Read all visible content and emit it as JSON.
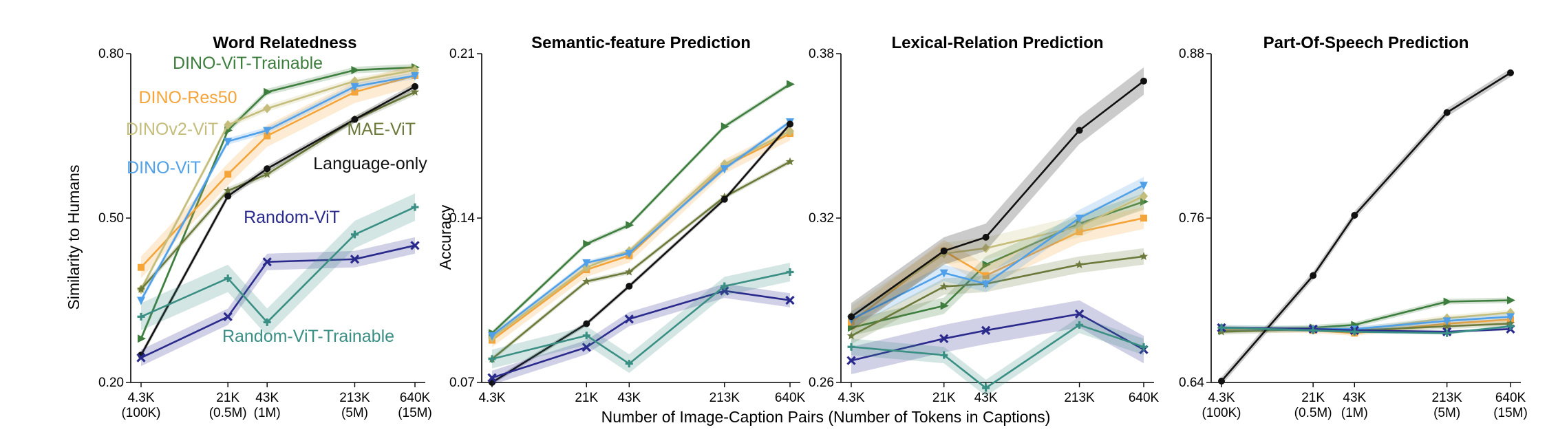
{
  "figure": {
    "xlabel": "Number of Image-Caption Pairs (Number of Tokens in Captions)",
    "ylabel_left": "Similarity to Humans",
    "ylabel_right": "Accuracy",
    "x_ticks": [
      {
        "value": 4.3,
        "label": "4.3K",
        "sub": "(100K)"
      },
      {
        "value": 21,
        "label": "21K",
        "sub": "(0.5M)"
      },
      {
        "value": 43,
        "label": "43K",
        "sub": "(1M)"
      },
      {
        "value": 213,
        "label": "213K",
        "sub": "(5M)"
      },
      {
        "value": 640,
        "label": "640K",
        "sub": "(15M)"
      }
    ]
  },
  "series_styles": [
    {
      "name": "DINO-ViT-Trainable",
      "color": "#3d7d3d",
      "marker": "tri-right"
    },
    {
      "name": "DINO-Res50",
      "color": "#f5a43a",
      "marker": "square"
    },
    {
      "name": "DINOv2-ViT",
      "color": "#c4bd7c",
      "marker": "diamond"
    },
    {
      "name": "MAE-ViT",
      "color": "#6b7a3a",
      "marker": "star"
    },
    {
      "name": "DINO-ViT",
      "color": "#4fa0e8",
      "marker": "tri-down"
    },
    {
      "name": "Language-only",
      "color": "#111111",
      "marker": "circle"
    },
    {
      "name": "Random-ViT",
      "color": "#2a2a8c",
      "marker": "x"
    },
    {
      "name": "Random-ViT-Trainable",
      "color": "#3a8f84",
      "marker": "plus"
    }
  ],
  "chart_data": [
    {
      "type": "line",
      "title": "Word Relatedness",
      "ylabel": "Similarity to Humans",
      "x": [
        4.3,
        21,
        43,
        213,
        640
      ],
      "xscale": "log",
      "ylim": [
        0.2,
        0.8
      ],
      "yticks": [
        "0.80",
        "0.50",
        "0.20"
      ],
      "ytick_values": [
        0.8,
        0.5,
        0.2
      ],
      "legend_labels": [
        {
          "text": "DINO-ViT-Trainable",
          "series": 0
        },
        {
          "text": "DINO-Res50",
          "series": 1
        },
        {
          "text": "DINOv2-ViT",
          "series": 2
        },
        {
          "text": "MAE-ViT",
          "series": 3
        },
        {
          "text": "DINO-ViT",
          "series": 4
        },
        {
          "text": "Language-only",
          "series": 5
        },
        {
          "text": "Random-ViT",
          "series": 6
        },
        {
          "text": "Random-ViT-Trainable",
          "series": 7
        }
      ],
      "series": [
        {
          "name": "DINO-ViT-Trainable",
          "values": [
            0.28,
            0.66,
            0.73,
            0.77,
            0.775
          ],
          "band": 0.006
        },
        {
          "name": "DINO-Res50",
          "values": [
            0.41,
            0.58,
            0.65,
            0.73,
            0.76
          ],
          "band": 0.02
        },
        {
          "name": "DINOv2-ViT",
          "values": [
            0.37,
            0.67,
            0.7,
            0.75,
            0.77
          ],
          "band": 0.006
        },
        {
          "name": "MAE-ViT",
          "values": [
            0.37,
            0.55,
            0.58,
            0.68,
            0.73
          ],
          "band": 0.006
        },
        {
          "name": "DINO-ViT",
          "values": [
            0.35,
            0.64,
            0.66,
            0.74,
            0.76
          ],
          "band": 0.006
        },
        {
          "name": "Language-only",
          "values": [
            0.25,
            0.54,
            0.59,
            0.68,
            0.74
          ],
          "band": 0.006
        },
        {
          "name": "Random-ViT",
          "values": [
            0.245,
            0.32,
            0.42,
            0.425,
            0.45
          ],
          "band": 0.015
        },
        {
          "name": "Random-ViT-Trainable",
          "values": [
            0.32,
            0.39,
            0.31,
            0.47,
            0.52
          ],
          "band": 0.025
        }
      ]
    },
    {
      "type": "line",
      "title": "Semantic-feature Prediction",
      "ylabel": "Accuracy",
      "x": [
        4.3,
        21,
        43,
        213,
        640
      ],
      "xscale": "log",
      "ylim": [
        0.07,
        0.21
      ],
      "yticks": [
        "0.21",
        "0.14",
        "0.07"
      ],
      "ytick_values": [
        0.21,
        0.14,
        0.07
      ],
      "series": [
        {
          "name": "DINO-ViT-Trainable",
          "values": [
            0.091,
            0.129,
            0.137,
            0.179,
            0.197
          ],
          "band": 0.001
        },
        {
          "name": "DINO-Res50",
          "values": [
            0.088,
            0.118,
            0.124,
            0.162,
            0.176
          ],
          "band": 0.003
        },
        {
          "name": "DINOv2-ViT",
          "values": [
            0.089,
            0.119,
            0.126,
            0.163,
            0.177
          ],
          "band": 0.001
        },
        {
          "name": "MAE-ViT",
          "values": [
            0.08,
            0.113,
            0.117,
            0.149,
            0.164
          ],
          "band": 0.001
        },
        {
          "name": "DINO-ViT",
          "values": [
            0.09,
            0.121,
            0.125,
            0.161,
            0.181
          ],
          "band": 0.001
        },
        {
          "name": "Language-only",
          "values": [
            0.07,
            0.095,
            0.111,
            0.148,
            0.18
          ],
          "band": 0.001
        },
        {
          "name": "Random-ViT",
          "values": [
            0.072,
            0.085,
            0.097,
            0.109,
            0.105
          ],
          "band": 0.003
        },
        {
          "name": "Random-ViT-Trainable",
          "values": [
            0.08,
            0.09,
            0.078,
            0.111,
            0.117
          ],
          "band": 0.004
        }
      ]
    },
    {
      "type": "line",
      "title": "Lexical-Relation Prediction",
      "ylabel": "",
      "x": [
        4.3,
        21,
        43,
        213,
        640
      ],
      "xscale": "log",
      "ylim": [
        0.26,
        0.38
      ],
      "yticks": [
        "0.38",
        "0.32",
        "0.26"
      ],
      "ytick_values": [
        0.38,
        0.32,
        0.26
      ],
      "series": [
        {
          "name": "DINO-ViT-Trainable",
          "values": [
            0.28,
            0.288,
            0.303,
            0.318,
            0.326
          ],
          "band": 0.003
        },
        {
          "name": "DINO-Res50",
          "values": [
            0.282,
            0.308,
            0.299,
            0.315,
            0.32
          ],
          "band": 0.004
        },
        {
          "name": "DINOv2-ViT",
          "values": [
            0.284,
            0.307,
            0.309,
            0.317,
            0.328
          ],
          "band": 0.004
        },
        {
          "name": "MAE-ViT",
          "values": [
            0.277,
            0.295,
            0.296,
            0.303,
            0.306
          ],
          "band": 0.003
        },
        {
          "name": "DINO-ViT",
          "values": [
            0.283,
            0.3,
            0.296,
            0.32,
            0.332
          ],
          "band": 0.003
        },
        {
          "name": "Language-only",
          "values": [
            0.284,
            0.308,
            0.313,
            0.352,
            0.37
          ],
          "band": 0.005
        },
        {
          "name": "Random-ViT",
          "values": [
            0.268,
            0.276,
            0.279,
            0.285,
            0.272
          ],
          "band": 0.005
        },
        {
          "name": "Random-ViT-Trainable",
          "values": [
            0.273,
            0.27,
            0.258,
            0.281,
            0.273
          ],
          "band": 0.003
        }
      ]
    },
    {
      "type": "line",
      "title": "Part-Of-Speech Prediction",
      "ylabel": "",
      "x": [
        4.3,
        21,
        43,
        213,
        640
      ],
      "xscale": "log",
      "ylim": [
        0.64,
        0.88
      ],
      "yticks": [
        "0.88",
        "0.76",
        "0.64"
      ],
      "ytick_values": [
        0.88,
        0.76,
        0.64
      ],
      "series": [
        {
          "name": "DINO-ViT-Trainable",
          "values": [
            0.678,
            0.68,
            0.682,
            0.699,
            0.7
          ],
          "band": 0.002
        },
        {
          "name": "DINO-Res50",
          "values": [
            0.679,
            0.678,
            0.676,
            0.683,
            0.686
          ],
          "band": 0.002
        },
        {
          "name": "DINOv2-ViT",
          "values": [
            0.68,
            0.679,
            0.678,
            0.687,
            0.691
          ],
          "band": 0.002
        },
        {
          "name": "MAE-ViT",
          "values": [
            0.677,
            0.679,
            0.678,
            0.681,
            0.683
          ],
          "band": 0.002
        },
        {
          "name": "DINO-ViT",
          "values": [
            0.68,
            0.679,
            0.679,
            0.685,
            0.688
          ],
          "band": 0.002
        },
        {
          "name": "Language-only",
          "values": [
            0.641,
            0.718,
            0.762,
            0.837,
            0.866
          ],
          "band": 0.003
        },
        {
          "name": "Random-ViT",
          "values": [
            0.68,
            0.679,
            0.678,
            0.677,
            0.679
          ],
          "band": 0.001
        },
        {
          "name": "Random-ViT-Trainable",
          "values": [
            0.68,
            0.678,
            0.677,
            0.676,
            0.681
          ],
          "band": 0.001
        }
      ]
    }
  ]
}
